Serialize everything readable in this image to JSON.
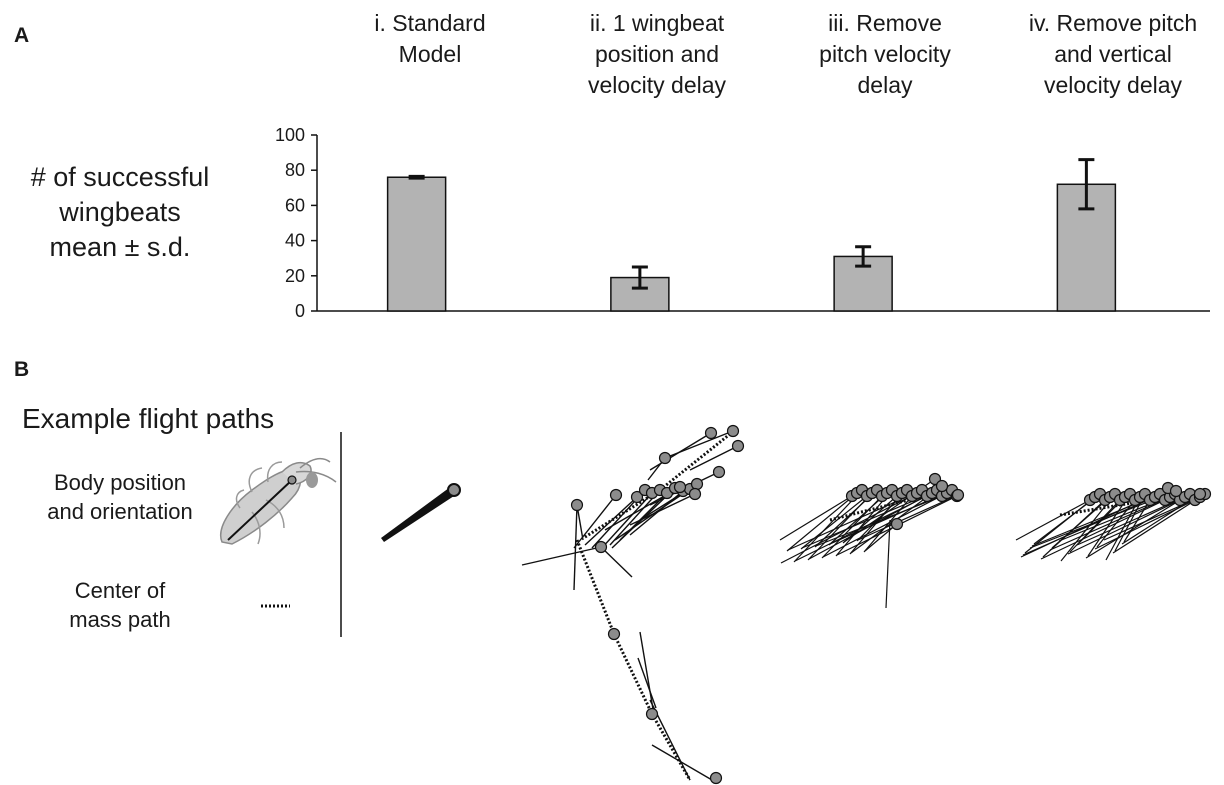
{
  "panel_a_label": "A",
  "panel_b_label": "B",
  "conditions": [
    {
      "lines": [
        "i. Standard",
        "Model"
      ]
    },
    {
      "lines": [
        "ii. 1 wingbeat",
        "position and",
        "velocity delay"
      ]
    },
    {
      "lines": [
        "iii. Remove",
        "pitch velocity",
        "delay"
      ]
    },
    {
      "lines": [
        "iv. Remove pitch",
        "and vertical",
        "velocity delay"
      ]
    }
  ],
  "chart_data": {
    "type": "bar",
    "categories": [
      "i. Standard Model",
      "ii. 1 wingbeat position and velocity delay",
      "iii. Remove pitch velocity delay",
      "iv. Remove pitch and vertical velocity delay"
    ],
    "values": [
      76,
      19,
      31,
      72
    ],
    "errors": [
      0.5,
      6,
      5.5,
      14
    ],
    "ylabel_lines": [
      "# of successful",
      "wingbeats",
      "mean ± s.d."
    ],
    "xlabel": "",
    "ylim": [
      0,
      100
    ],
    "yticks": [
      0,
      20,
      40,
      60,
      80,
      100
    ],
    "bar_color": "#b3b3b3",
    "grid": false
  },
  "panel_b": {
    "title": "Example flight paths",
    "legend": [
      {
        "lines": [
          "Body position",
          "and orientation"
        ],
        "icon": "insect-body-icon"
      },
      {
        "lines": [
          "Center of",
          "mass path"
        ],
        "icon": "dotted-line-icon"
      }
    ]
  },
  "colors": {
    "marker": "#8c8c8c",
    "stroke": "#111111",
    "insect": "#c8c8c8"
  }
}
